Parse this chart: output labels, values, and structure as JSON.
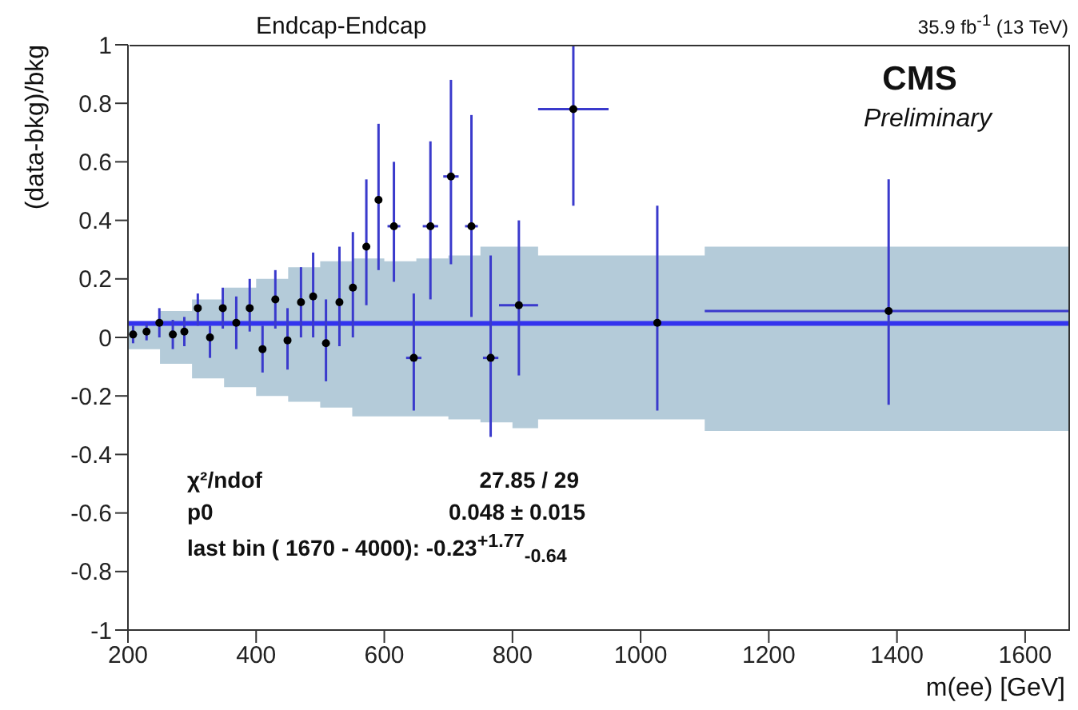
{
  "chart_data": {
    "type": "scatter",
    "title": "Endcap-Endcap",
    "subtitle": "35.9 fb$^{-1}$ (13 TeV)",
    "xlabel": "m(ee) [GeV]",
    "ylabel": "(data-bkg)/bkg",
    "annotations": [
      "CMS",
      "Preliminary",
      "χ²/ndof",
      "27.85 / 29",
      "p0",
      "0.048 ± 0.015",
      "last bin ( 1670 - 4000): -0.23$^{+1.77}$$_{-0.64}$"
    ],
    "xlim": [
      200,
      1670
    ],
    "xticks": [
      200,
      400,
      600,
      800,
      1000,
      1200,
      1400,
      1600
    ],
    "ylim": [
      -1,
      1
    ],
    "yticks": [
      -1,
      -0.8,
      -0.6,
      -0.4,
      -0.2,
      0,
      0.2,
      0.4,
      0.6,
      0.8,
      1
    ],
    "series": [
      {
        "type": "step",
        "color": "#b4cbd9",
        "x": [
          200,
          250,
          300,
          350,
          400,
          450,
          500,
          550,
          600,
          650,
          700,
          750,
          800,
          840,
          950,
          1100,
          1670
        ],
        "values": [
          null,
          null,
          null,
          null,
          null,
          null,
          null,
          null,
          null,
          null,
          null,
          null,
          null,
          null,
          null,
          null,
          null
        ],
        "upper": [
          0.05,
          0.09,
          0.13,
          0.17,
          0.2,
          0.24,
          0.26,
          0.27,
          0.26,
          0.27,
          0.28,
          0.31,
          0.31,
          0.28,
          0.28,
          0.31,
          0.31
        ],
        "lower": [
          -0.04,
          -0.09,
          -0.14,
          -0.17,
          -0.2,
          -0.22,
          -0.24,
          -0.27,
          -0.27,
          -0.27,
          -0.28,
          -0.29,
          -0.31,
          -0.28,
          -0.28,
          -0.32,
          -0.32
        ]
      },
      {
        "type": "line",
        "color": "#3333ee",
        "x": [
          200,
          1670
        ],
        "values": [
          0.048,
          0.048
        ]
      },
      {
        "marker": "circle",
        "color": "#000000",
        "x": [
          208,
          229,
          249,
          270,
          288,
          309,
          328,
          348,
          369,
          390,
          410,
          430,
          449,
          470,
          489,
          509,
          530,
          551,
          572,
          591,
          615,
          646,
          672,
          704,
          736,
          766,
          810,
          895,
          1026,
          1387
        ],
        "values": [
          0.01,
          0.02,
          0.05,
          0.01,
          0.02,
          0.1,
          0.0,
          0.1,
          0.05,
          0.1,
          -0.04,
          0.13,
          -0.01,
          0.12,
          0.14,
          -0.02,
          0.12,
          0.17,
          0.31,
          0.47,
          0.38,
          -0.07,
          0.38,
          0.55,
          0.38,
          -0.07,
          0.11,
          0.78,
          0.05,
          0.09
        ],
        "errors": [
          0.03,
          0.03,
          0.05,
          0.05,
          0.05,
          [
            0.04,
            0.15
          ],
          [
            -0.07,
            0.04
          ],
          [
            0.03,
            0.17
          ],
          [
            -0.04,
            0.14
          ],
          [
            0.02,
            0.2
          ],
          [
            -0.12,
            0.04
          ],
          [
            0.03,
            0.23
          ],
          [
            -0.11,
            0.1
          ],
          [
            0.0,
            0.24
          ],
          [
            0.0,
            0.29
          ],
          [
            -0.15,
            0.13
          ],
          [
            -0.03,
            0.31
          ],
          [
            0.0,
            0.36
          ],
          [
            0.11,
            0.54
          ],
          [
            0.23,
            0.73
          ],
          [
            0.19,
            0.6
          ],
          [
            -0.25,
            0.15
          ],
          [
            0.13,
            0.67
          ],
          [
            0.25,
            0.88
          ],
          [
            0.07,
            0.76
          ],
          [
            -0.34,
            0.28
          ],
          [
            -0.13,
            0.4
          ],
          [
            0.45,
            1
          ],
          [
            -0.25,
            0.45
          ],
          [
            -0.23,
            0.54
          ]
        ],
        "xerrors": [
          null,
          null,
          null,
          null,
          null,
          null,
          null,
          null,
          null,
          null,
          null,
          null,
          null,
          null,
          null,
          null,
          null,
          null,
          null,
          null,
          10,
          12,
          12,
          12,
          10,
          12,
          [
            779,
            840
          ],
          [
            840,
            950
          ],
          null,
          [
            1100,
            1670
          ]
        ]
      }
    ]
  }
}
